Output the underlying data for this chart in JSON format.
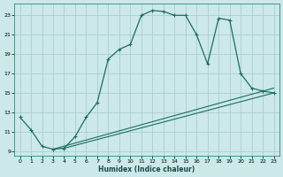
{
  "xlabel": "Humidex (Indice chaleur)",
  "bg_color": "#cce8e8",
  "grid_color": "#aacece",
  "line_color": "#1a6e5e",
  "xlim": [
    -0.5,
    23.5
  ],
  "ylim": [
    8.5,
    24.2
  ],
  "xticks": [
    0,
    1,
    2,
    3,
    4,
    5,
    6,
    7,
    8,
    9,
    10,
    11,
    12,
    13,
    14,
    15,
    16,
    17,
    18,
    19,
    20,
    21,
    22,
    23
  ],
  "yticks": [
    9,
    11,
    13,
    15,
    17,
    19,
    21,
    23
  ],
  "curve_x": [
    0,
    1,
    2,
    3,
    4,
    5,
    6,
    7,
    8,
    9,
    10,
    11,
    12,
    13,
    14,
    15,
    16,
    17,
    18,
    19,
    20,
    21,
    22,
    23
  ],
  "curve_y": [
    12.5,
    11.2,
    9.5,
    9.2,
    9.3,
    10.5,
    12.5,
    14.0,
    18.5,
    19.5,
    20.0,
    23.0,
    23.5,
    23.4,
    23.0,
    23.0,
    21.0,
    18.0,
    22.7,
    22.5,
    17.0,
    15.5,
    15.2,
    15.0
  ],
  "line1_x": [
    3,
    23
  ],
  "line1_y": [
    9.2,
    15.5
  ],
  "line2_x": [
    4,
    23
  ],
  "line2_y": [
    9.3,
    15.0
  ]
}
